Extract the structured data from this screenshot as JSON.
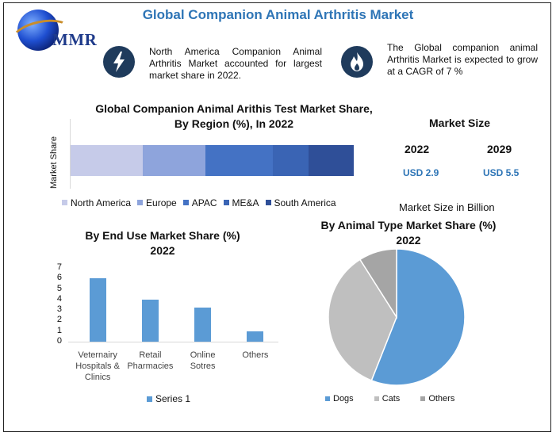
{
  "header": {
    "title": "Global Companion Animal Arthritis Market",
    "logo_text": "MMR"
  },
  "facts": [
    {
      "icon": "lightning-icon",
      "text": "North America Companion Animal Arthritis Market accounted for largest market share in 2022."
    },
    {
      "icon": "flame-icon",
      "text": "The Global companion animal Arthritis Market is expected to grow at a CAGR of 7 %"
    }
  ],
  "market_size": {
    "heading": "Market Size",
    "years": [
      {
        "year": "2022",
        "value": "USD 2.9"
      },
      {
        "year": "2029",
        "value": "USD 5.5"
      }
    ],
    "unit_note": "Market Size in Billion"
  },
  "colors": {
    "title_blue": "#2e75b6",
    "icon_bg": "#1f3b5c",
    "bar_blue": "#5b9bd5",
    "pie_dogs": "#5b9bd5",
    "pie_cats": "#bfbfbf",
    "pie_others": "#a5a5a5"
  },
  "chart_data": [
    {
      "type": "bar",
      "orientation": "horizontal-stacked",
      "title_line1": "Global Companion Animal Arithis Test Market Share,",
      "title_line2": "By Region (%), In 2022",
      "ylabel": "Market Share",
      "grid": false,
      "legend_position": "bottom",
      "series": [
        {
          "name": "North America",
          "value": 25.5,
          "color": "#c6cbe9"
        },
        {
          "name": "Europe",
          "value": 22,
          "color": "#8ea4dc"
        },
        {
          "name": "APAC",
          "value": 24,
          "color": "#4472c4"
        },
        {
          "name": "ME&A",
          "value": 12.5,
          "color": "#3a64b4"
        },
        {
          "name": "South America",
          "value": 16,
          "color": "#2f4f98"
        }
      ]
    },
    {
      "type": "bar",
      "title_line1": "By End Use Market Share (%)",
      "title_line2": "2022",
      "categories": [
        [
          "Veternairy",
          "Hospitals &",
          "Clinics"
        ],
        [
          "Retail",
          "Pharmacies"
        ],
        [
          "Online",
          "Sotres"
        ],
        [
          "Others"
        ]
      ],
      "series": [
        {
          "name": "Series 1",
          "values": [
            6,
            4,
            3.2,
            1
          ]
        }
      ],
      "ylim": [
        0,
        7
      ],
      "yticks": [
        "0",
        "1",
        "2",
        "3",
        "4",
        "5",
        "6",
        "7"
      ],
      "grid": false,
      "legend_position": "bottom"
    },
    {
      "type": "pie",
      "title_line1": "By Animal Type Market Share (%)",
      "title_line2": "2022",
      "slices": [
        {
          "name": "Dogs",
          "value": 56,
          "color": "#5b9bd5"
        },
        {
          "name": "Cats",
          "value": 35,
          "color": "#bfbfbf"
        },
        {
          "name": "Others",
          "value": 9,
          "color": "#a5a5a5"
        }
      ],
      "legend_position": "bottom"
    }
  ]
}
